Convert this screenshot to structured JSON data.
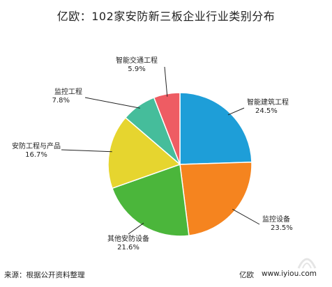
{
  "page": {
    "title": "亿欧：102家安防新三板企业行业类别分布",
    "source": "来源：根据公开资料整理",
    "brand": "亿欧",
    "site": "www.iyiou.com"
  },
  "chart_data": {
    "type": "pie",
    "title": "亿欧：102家安防新三板企业行业类别分布",
    "categories": [
      "智能建筑工程",
      "监控设备",
      "其他安防设备",
      "安防工程与产品",
      "监控工程",
      "智能交通工程"
    ],
    "values": [
      24.5,
      23.5,
      21.6,
      16.7,
      7.8,
      5.9
    ],
    "value_labels": [
      "24.5%",
      "23.5%",
      "21.6%",
      "16.7%",
      "7.8%",
      "5.9%"
    ],
    "colors": [
      "#1e9ed8",
      "#f5841f",
      "#4bb63b",
      "#e6d52f",
      "#45bd9b",
      "#ee5c63"
    ],
    "legend": "none"
  }
}
